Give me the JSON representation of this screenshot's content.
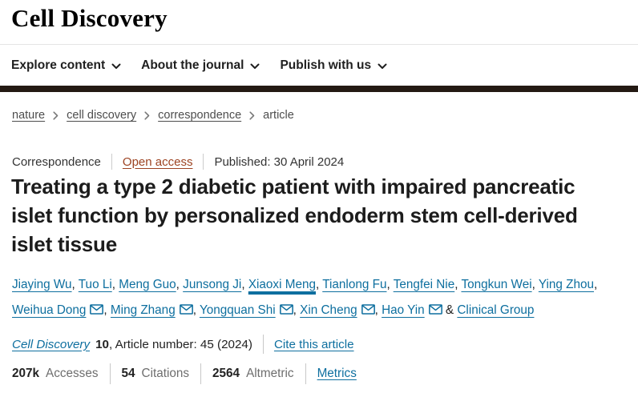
{
  "header": {
    "logo": "Cell Discovery",
    "nav": [
      {
        "label": "Explore content"
      },
      {
        "label": "About the journal"
      },
      {
        "label": "Publish with us"
      }
    ]
  },
  "breadcrumb": {
    "items": [
      {
        "label": "nature",
        "link": true
      },
      {
        "label": "cell discovery",
        "link": true
      },
      {
        "label": "correspondence",
        "link": true
      },
      {
        "label": "article",
        "link": false
      }
    ]
  },
  "article": {
    "type": "Correspondence",
    "access_label": "Open access",
    "published": "Published: 30 April 2024",
    "title": "Treating a type 2 diabetic patient with impaired pancreatic islet function by personalized endoderm stem cell-derived islet tissue",
    "authors": [
      {
        "name": "Jiaying Wu",
        "email": false,
        "hovered": false,
        "sep": ", "
      },
      {
        "name": "Tuo Li",
        "email": false,
        "hovered": false,
        "sep": ", "
      },
      {
        "name": "Meng Guo",
        "email": false,
        "hovered": false,
        "sep": ", "
      },
      {
        "name": "Junsong Ji",
        "email": false,
        "hovered": false,
        "sep": ", "
      },
      {
        "name": "Xiaoxi Meng",
        "email": false,
        "hovered": true,
        "sep": ", "
      },
      {
        "name": "Tianlong Fu",
        "email": false,
        "hovered": false,
        "sep": ", "
      },
      {
        "name": "Tengfei Nie",
        "email": false,
        "hovered": false,
        "sep": ", "
      },
      {
        "name": "Tongkun Wei",
        "email": false,
        "hovered": false,
        "sep": ", "
      },
      {
        "name": "Ying Zhou",
        "email": false,
        "hovered": false,
        "sep": ", ",
        "break_after": true
      },
      {
        "name": "Weihua Dong",
        "email": true,
        "hovered": false,
        "sep": ", "
      },
      {
        "name": "Ming Zhang",
        "email": true,
        "hovered": false,
        "sep": ", "
      },
      {
        "name": "Yongquan Shi",
        "email": true,
        "hovered": false,
        "sep": ", "
      },
      {
        "name": "Xin Cheng",
        "email": true,
        "hovered": false,
        "sep": ", "
      },
      {
        "name": "Hao Yin",
        "email": true,
        "hovered": false,
        "sep": " & "
      },
      {
        "name": "Clinical Group",
        "email": false,
        "hovered": false,
        "sep": ""
      }
    ],
    "journal": {
      "name": "Cell Discovery",
      "volume": "10",
      "article_info": ", Article number: 45 (2024)",
      "cite_label": "Cite this article"
    },
    "metrics": [
      {
        "value": "207k",
        "label": "Accesses",
        "is_link": false
      },
      {
        "value": "54",
        "label": "Citations",
        "is_link": false
      },
      {
        "value": "2564",
        "label": "Altmetric",
        "is_link": false
      },
      {
        "value": "",
        "label": "Metrics",
        "is_link": true
      }
    ]
  },
  "colors": {
    "link_blue": "#0e6f9f",
    "open_access": "#9d4322",
    "dark_bar": "#241a13"
  }
}
